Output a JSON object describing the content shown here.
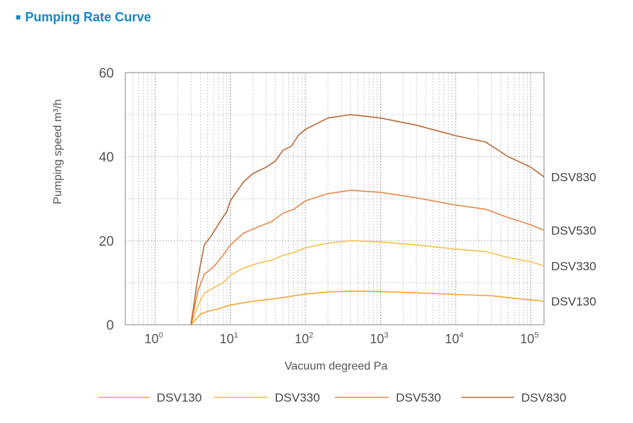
{
  "heading": {
    "marker": "■",
    "title": "Pumping Rate Curve"
  },
  "chart_data": {
    "type": "line",
    "xlabel": "Vacuum degreed Pa",
    "ylabel": "Pumping speed m³/h",
    "xscale": "log",
    "xlim": [
      0.4,
      150000
    ],
    "ylim": [
      0,
      60
    ],
    "yticks": [
      0,
      20,
      40,
      60
    ],
    "xticks": [
      {
        "value": 1,
        "base": "10",
        "exp": "0"
      },
      {
        "value": 10,
        "base": "10",
        "exp": "1"
      },
      {
        "value": 100,
        "base": "10",
        "exp": "2"
      },
      {
        "value": 1000,
        "base": "10",
        "exp": "3"
      },
      {
        "value": 10000,
        "base": "10",
        "exp": "4"
      },
      {
        "value": 100000,
        "base": "10",
        "exp": "5"
      }
    ],
    "grid": true,
    "legend_position": "bottom",
    "series": [
      {
        "name": "DSV130",
        "color": "#f0a830",
        "points": [
          [
            3,
            0
          ],
          [
            4,
            2.5
          ],
          [
            5,
            3.2
          ],
          [
            7,
            3.8
          ],
          [
            10,
            4.7
          ],
          [
            20,
            5.6
          ],
          [
            40,
            6.2
          ],
          [
            60,
            6.7
          ],
          [
            100,
            7.3
          ],
          [
            200,
            7.8
          ],
          [
            400,
            8.0
          ],
          [
            1000,
            7.9
          ],
          [
            3000,
            7.6
          ],
          [
            10000,
            7.2
          ],
          [
            30000,
            6.9
          ],
          [
            60000,
            6.3
          ],
          [
            150000,
            5.6
          ]
        ]
      },
      {
        "name": "DSV330",
        "color": "#f2c04e",
        "points": [
          [
            3,
            0
          ],
          [
            3.8,
            5
          ],
          [
            4.5,
            7.5
          ],
          [
            6,
            8.8
          ],
          [
            8,
            10
          ],
          [
            10,
            11.8
          ],
          [
            15,
            13.5
          ],
          [
            25,
            14.8
          ],
          [
            35,
            15.3
          ],
          [
            50,
            16.5
          ],
          [
            70,
            17.2
          ],
          [
            100,
            18.3
          ],
          [
            200,
            19.4
          ],
          [
            400,
            20.0
          ],
          [
            1000,
            19.7
          ],
          [
            3000,
            19.0
          ],
          [
            10000,
            18.0
          ],
          [
            25000,
            17.4
          ],
          [
            50000,
            16.0
          ],
          [
            100000,
            15.0
          ],
          [
            150000,
            14.0
          ]
        ]
      },
      {
        "name": "DSV530",
        "color": "#e8884a",
        "points": [
          [
            3,
            0
          ],
          [
            3.7,
            8
          ],
          [
            4.5,
            12
          ],
          [
            6,
            13.8
          ],
          [
            8,
            16.5
          ],
          [
            10,
            19
          ],
          [
            15,
            21.8
          ],
          [
            25,
            23.5
          ],
          [
            35,
            24.5
          ],
          [
            50,
            26.5
          ],
          [
            70,
            27.5
          ],
          [
            100,
            29.5
          ],
          [
            200,
            31.2
          ],
          [
            400,
            32.0
          ],
          [
            1000,
            31.5
          ],
          [
            3000,
            30.2
          ],
          [
            10000,
            28.5
          ],
          [
            25000,
            27.5
          ],
          [
            50000,
            25.5
          ],
          [
            100000,
            23.8
          ],
          [
            150000,
            22.5
          ]
        ]
      },
      {
        "name": "DSV830",
        "color": "#b86a38",
        "points": [
          [
            3,
            0
          ],
          [
            3.6,
            10
          ],
          [
            4.5,
            19
          ],
          [
            5.5,
            21
          ],
          [
            7,
            24
          ],
          [
            9,
            27
          ],
          [
            10,
            29.5
          ],
          [
            15,
            34
          ],
          [
            20,
            36
          ],
          [
            30,
            37.5
          ],
          [
            40,
            39
          ],
          [
            50,
            41.5
          ],
          [
            65,
            42.5
          ],
          [
            80,
            45
          ],
          [
            100,
            46.5
          ],
          [
            200,
            49.2
          ],
          [
            400,
            50.0
          ],
          [
            1000,
            49.2
          ],
          [
            3000,
            47.5
          ],
          [
            10000,
            45.0
          ],
          [
            25000,
            43.5
          ],
          [
            50000,
            40.0
          ],
          [
            100000,
            37.5
          ],
          [
            150000,
            35.2
          ]
        ]
      }
    ]
  }
}
